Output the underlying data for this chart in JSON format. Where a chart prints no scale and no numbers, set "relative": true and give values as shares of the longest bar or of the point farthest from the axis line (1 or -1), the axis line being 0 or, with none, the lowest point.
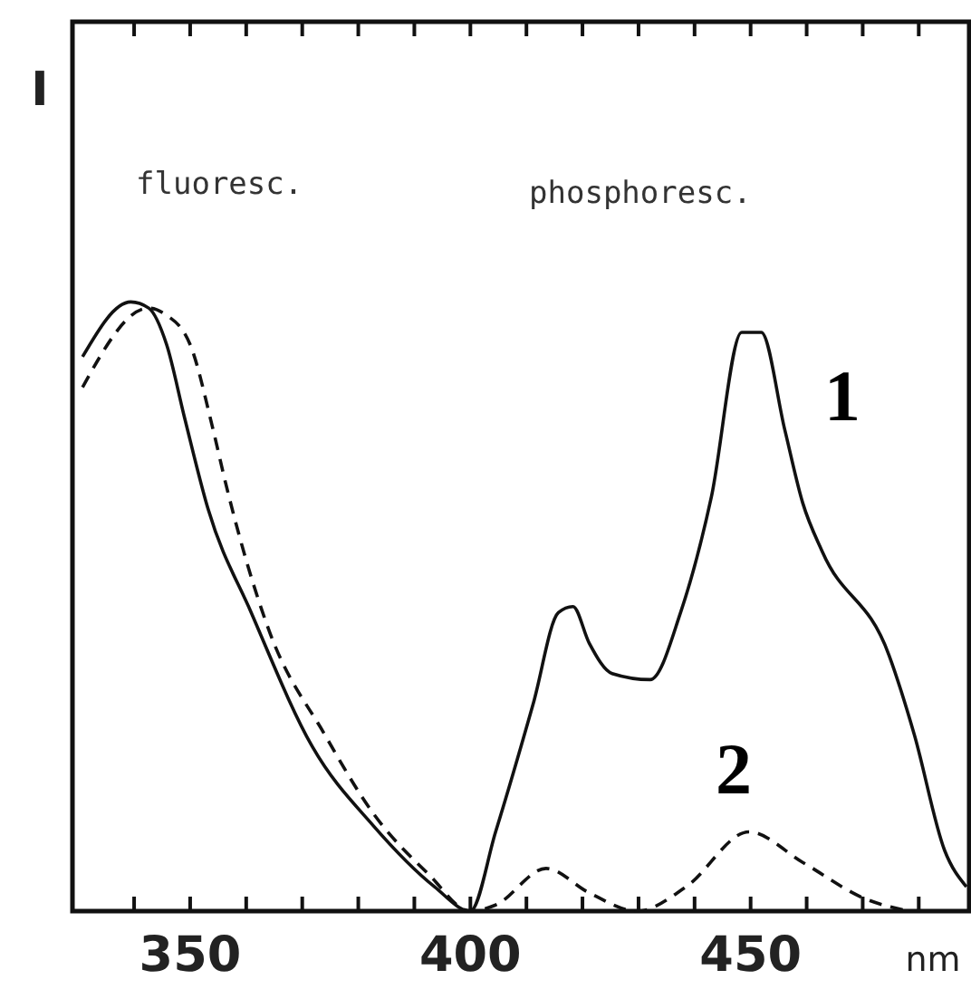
{
  "chart_data": {
    "type": "line",
    "relative": true,
    "ylabel": "I",
    "xlabel": "nm",
    "xlim": [
      329,
      489
    ],
    "xticks": [
      {
        "value": 340,
        "label": null
      },
      350,
      {
        "value": 360,
        "label": null
      },
      {
        "value": 370,
        "label": null
      },
      {
        "value": 380,
        "label": null
      },
      {
        "value": 390,
        "label": null
      },
      400,
      {
        "value": 410,
        "label": null
      },
      {
        "value": 420,
        "label": null
      },
      {
        "value": 430,
        "label": null
      },
      {
        "value": 440,
        "label": null
      },
      450,
      {
        "value": 460,
        "label": null
      },
      {
        "value": 470,
        "label": null
      },
      {
        "value": 480,
        "label": null
      }
    ],
    "annotations": [
      "fluoresc.",
      "phosphoresc."
    ],
    "marker": "none",
    "series": [
      {
        "name": "1",
        "color": "#111111",
        "line_style": "solid",
        "x": [
          330.8,
          339.4,
          342.6,
          345.8,
          349.0,
          353.2,
          360.9,
          371.8,
          382.7,
          393.6,
          400,
          404.5,
          411.2,
          415.7,
          418.3,
          421.2,
          425.3,
          432.1,
          437.5,
          443.0,
          448.4,
          451.9,
          456.1,
          459.3,
          462.8,
          474.7,
          479.2,
          484.6,
          488.5
        ],
        "values": [
          0.91,
          1.0,
          0.99,
          0.93,
          0.81,
          0.66,
          0.49,
          0.27,
          0.14,
          0.04,
          0,
          0.13,
          0.34,
          0.49,
          0.5,
          0.44,
          0.39,
          0.38,
          0.49,
          0.68,
          0.95,
          0.95,
          0.79,
          0.67,
          0.59,
          0.42,
          0.29,
          0.1,
          0.04
        ]
      },
      {
        "name": "2",
        "color": "#111111",
        "line_style": "dashed",
        "x": [
          330.8,
          342.6,
          345.5,
          350.0,
          354.1,
          356.4,
          364.1,
          374.0,
          382.7,
          392.6,
          400,
          404.5,
          413.5,
          421.2,
          429.8,
          438.5,
          449.7,
          459.3,
          470.5,
          478.2
        ],
        "values": [
          0.86,
          0.99,
          0.98,
          0.93,
          0.79,
          0.7,
          0.46,
          0.29,
          0.16,
          0.06,
          0,
          0.01,
          0.07,
          0.03,
          0,
          0.04,
          0.13,
          0.08,
          0.02,
          0
        ]
      }
    ]
  }
}
